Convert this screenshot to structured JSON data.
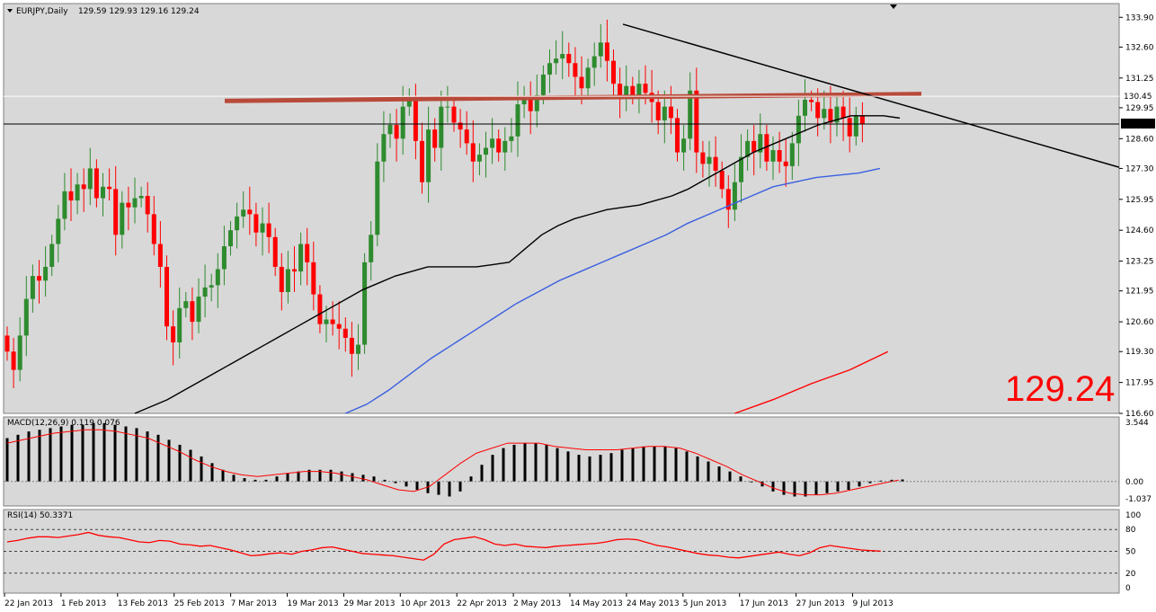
{
  "header": {
    "symbol_label": "EURJPY,Daily",
    "ohlc_label": "129.59 129.93 129.16 129.24"
  },
  "big_price": "129.24",
  "current_price_tag": "129.24",
  "high_line_tag": "130.45",
  "colors": {
    "bull": "#2e8b2e",
    "bear": "#ff0000",
    "ma_black": "#000000",
    "ma_blue": "#3a5fe0",
    "ma_red": "#ff0000",
    "resistance": "#b84a3a",
    "panel_bg": "#d8d8d8",
    "macd_signal": "#ff0000",
    "rsi_line": "#ff0000"
  },
  "chart_data": [
    {
      "type": "candlestick",
      "title": "EURJPY,Daily",
      "ylim": [
        116.6,
        134.5
      ],
      "y_ticks": [
        "133.90",
        "132.60",
        "131.25",
        "129.95",
        "128.60",
        "127.30",
        "125.95",
        "124.60",
        "123.25",
        "121.95",
        "120.60",
        "119.30",
        "117.95",
        "116.60"
      ],
      "x_ticks": [
        "22 Jan 2013",
        "1 Feb 2013",
        "13 Feb 2013",
        "25 Feb 2013",
        "7 Mar 2013",
        "19 Mar 2013",
        "29 Mar 2013",
        "10 Apr 2013",
        "22 Apr 2013",
        "2 May 2013",
        "14 May 2013",
        "24 May 2013",
        "5 Jun 2013",
        "17 Jun 2013",
        "27 Jun 2013",
        "9 Jul 2013"
      ],
      "closes": [
        119.3,
        118.5,
        120.0,
        121.6,
        122.6,
        122.4,
        123.0,
        124.0,
        125.1,
        126.3,
        125.9,
        126.6,
        126.4,
        127.3,
        126.0,
        126.5,
        126.4,
        124.4,
        125.8,
        125.6,
        126.0,
        126.1,
        125.3,
        124.0,
        123.0,
        120.4,
        119.7,
        121.2,
        121.5,
        120.6,
        121.7,
        122.1,
        122.2,
        122.9,
        123.9,
        124.6,
        125.2,
        125.5,
        125.3,
        124.5,
        124.9,
        124.3,
        123.0,
        121.9,
        122.9,
        122.8,
        124.0,
        123.2,
        121.8,
        120.5,
        120.7,
        120.5,
        120.3,
        119.9,
        119.2,
        119.6,
        123.2,
        124.4,
        127.6,
        128.8,
        129.2,
        128.6,
        130.0,
        130.4,
        128.5,
        126.7,
        129.0,
        128.2,
        130.0,
        130.0,
        129.3,
        129.0,
        128.4,
        127.6,
        127.9,
        128.2,
        128.6,
        128.0,
        128.5,
        128.7,
        130.1,
        130.4,
        129.8,
        130.5,
        131.4,
        131.9,
        132.1,
        132.3,
        131.9,
        131.3,
        130.8,
        131.7,
        132.2,
        132.8,
        132.0,
        131.0,
        130.5,
        130.9,
        130.5,
        131.0,
        130.6,
        130.2,
        129.4,
        130.0,
        129.5,
        128.0,
        128.6,
        130.7,
        128.0,
        127.5,
        127.8,
        127.2,
        126.4,
        125.5,
        126.7,
        127.8,
        128.5,
        128.0,
        128.8,
        127.6,
        128.1,
        127.6,
        127.4,
        128.4,
        129.6,
        130.3,
        130.2,
        129.5,
        129.9,
        129.3,
        130.0,
        129.5,
        128.7,
        129.59,
        129.24
      ],
      "series": [
        {
          "name": "MA black",
          "values": [
            116.6,
            116.9,
            117.2,
            117.6,
            118.0,
            118.4,
            118.8,
            119.2,
            119.6,
            120.0,
            120.4,
            120.8,
            121.2,
            121.6,
            122.0,
            122.3,
            122.6,
            122.8,
            123.0,
            123.0,
            123.0,
            123.0,
            123.1,
            123.2,
            123.8,
            124.4,
            124.8,
            125.1,
            125.3,
            125.5,
            125.6,
            125.7,
            125.9,
            126.1,
            126.4,
            126.8,
            127.2,
            127.6,
            128.0,
            128.3,
            128.6,
            128.9,
            129.2,
            129.4,
            129.6,
            129.6,
            129.6,
            129.5
          ]
        },
        {
          "name": "MA blue",
          "values": [
            116.6,
            117.0,
            117.6,
            118.3,
            119.0,
            119.6,
            120.2,
            120.8,
            121.4,
            121.9,
            122.4,
            122.8,
            123.2,
            123.6,
            124.0,
            124.4,
            124.9,
            125.3,
            125.7,
            126.1,
            126.5,
            126.7,
            126.9,
            127.0,
            127.1,
            127.3
          ]
        },
        {
          "name": "MA red",
          "values": [
            116.6,
            117.2,
            117.9,
            118.5,
            119.3
          ]
        }
      ]
    },
    {
      "type": "bar",
      "title": "MACD(12,26,9) 0.119 0.076",
      "ylim": [
        -1.037,
        3.544
      ],
      "y_ticks": [
        "3.544",
        "0.00",
        "-1.037"
      ],
      "values": [
        2.6,
        2.8,
        3.0,
        3.1,
        3.2,
        3.3,
        3.4,
        3.4,
        3.5,
        3.5,
        3.4,
        3.3,
        3.2,
        3.0,
        2.8,
        2.5,
        2.2,
        1.9,
        1.5,
        1.1,
        0.7,
        0.4,
        0.2,
        0.1,
        0.1,
        0.3,
        0.5,
        0.6,
        0.7,
        0.7,
        0.7,
        0.6,
        0.5,
        0.4,
        0.3,
        0.1,
        -0.1,
        -0.3,
        -0.5,
        -0.7,
        -0.8,
        -0.9,
        -0.6,
        0.3,
        1.0,
        1.6,
        2.0,
        2.2,
        2.3,
        2.3,
        2.2,
        2.0,
        1.8,
        1.6,
        1.5,
        1.6,
        1.7,
        1.9,
        2.0,
        2.1,
        2.1,
        2.1,
        2.0,
        1.8,
        1.5,
        1.2,
        0.9,
        0.6,
        0.3,
        0.0,
        -0.3,
        -0.6,
        -0.8,
        -0.9,
        -0.9,
        -0.8,
        -0.7,
        -0.6,
        -0.5,
        -0.3,
        -0.1,
        0.05,
        0.1,
        0.12
      ],
      "signal": [
        2.3,
        2.5,
        2.7,
        2.9,
        3.0,
        3.1,
        3.1,
        3.0,
        2.8,
        2.6,
        2.2,
        1.8,
        1.3,
        0.9,
        0.6,
        0.4,
        0.3,
        0.4,
        0.5,
        0.6,
        0.6,
        0.5,
        0.3,
        0.1,
        -0.2,
        -0.5,
        -0.6,
        -0.3,
        0.4,
        1.1,
        1.7,
        2.0,
        2.3,
        2.3,
        2.3,
        2.1,
        2.0,
        1.9,
        1.9,
        1.9,
        2.0,
        2.1,
        2.1,
        2.0,
        1.7,
        1.3,
        0.9,
        0.4,
        0.0,
        -0.4,
        -0.7,
        -0.8,
        -0.8,
        -0.7,
        -0.5,
        -0.3,
        -0.1,
        0.08
      ]
    },
    {
      "type": "line",
      "title": "RSI(14) 50.3371",
      "ylim": [
        0,
        100
      ],
      "y_ticks": [
        "100",
        "80",
        "50",
        "20",
        "0"
      ],
      "levels": [
        80,
        50,
        20
      ],
      "values": [
        63,
        65,
        68,
        70,
        70,
        69,
        71,
        73,
        76,
        72,
        70,
        69,
        66,
        63,
        62,
        65,
        64,
        60,
        59,
        57,
        58,
        55,
        52,
        48,
        44,
        45,
        47,
        48,
        46,
        50,
        52,
        55,
        56,
        53,
        50,
        47,
        46,
        45,
        44,
        42,
        40,
        38,
        46,
        60,
        66,
        68,
        70,
        66,
        60,
        58,
        60,
        57,
        56,
        55,
        57,
        58,
        59,
        60,
        61,
        63,
        66,
        67,
        66,
        62,
        58,
        56,
        53,
        50,
        47,
        45,
        44,
        42,
        41,
        43,
        45,
        47,
        49,
        46,
        44,
        48,
        55,
        58,
        56,
        54,
        52,
        51,
        50.34
      ]
    }
  ]
}
